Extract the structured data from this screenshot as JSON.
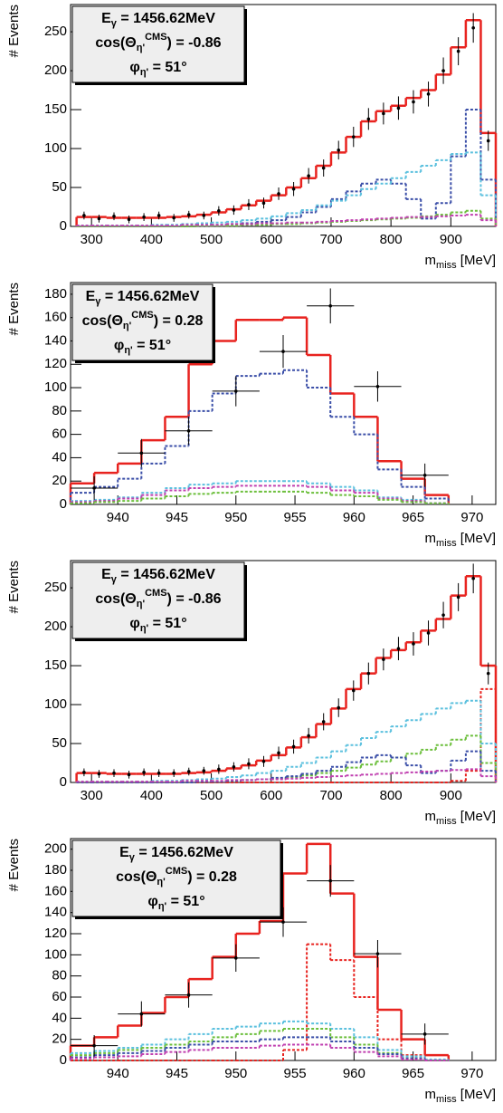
{
  "chart_data": [
    {
      "type": "histogram",
      "annotation": [
        {
          "text": "E",
          "sub": "γ",
          "tail": " = 1456.62MeV"
        },
        {
          "text": "cos(Θ",
          "sub": "η'",
          "sup": "CMS",
          "tail": ") = -0.86"
        },
        {
          "text": "φ",
          "sub": "η'",
          "tail": " = 51°"
        }
      ],
      "ylabel": "# Events",
      "xlabel": {
        "text": "m",
        "sub": "miss",
        "tail": " [MeV]"
      },
      "xlim": [
        265,
        975
      ],
      "ylim": [
        0,
        285
      ],
      "xticks": [
        300,
        400,
        500,
        600,
        700,
        800,
        900
      ],
      "yticks": [
        0,
        50,
        100,
        150,
        200,
        250
      ],
      "bins": [
        275,
        300,
        325,
        350,
        375,
        400,
        425,
        450,
        475,
        500,
        525,
        550,
        575,
        600,
        625,
        650,
        675,
        700,
        725,
        750,
        775,
        800,
        825,
        850,
        875,
        900,
        925,
        950,
        975
      ],
      "series": [
        {
          "color": "#e8231f",
          "style": "solid",
          "values": [
            12,
            12,
            11,
            11,
            11,
            11,
            12,
            13,
            15,
            18,
            22,
            27,
            33,
            40,
            50,
            62,
            78,
            95,
            115,
            135,
            148,
            155,
            165,
            175,
            195,
            230,
            265,
            120
          ]
        },
        {
          "color": "#3b4fa8",
          "style": "dashed",
          "values": [
            0,
            0,
            0,
            0,
            0,
            0,
            0,
            0,
            1,
            2,
            3,
            4,
            6,
            8,
            12,
            18,
            25,
            35,
            45,
            55,
            60,
            55,
            35,
            10,
            30,
            90,
            150,
            60
          ]
        },
        {
          "color": "#5bc0de",
          "style": "dashed",
          "values": [
            1,
            1,
            1,
            1,
            1,
            2,
            2,
            3,
            4,
            5,
            6,
            8,
            10,
            13,
            17,
            21,
            27,
            33,
            40,
            48,
            55,
            62,
            70,
            78,
            85,
            93,
            95,
            40
          ]
        },
        {
          "color": "#6cbf3c",
          "style": "dashed",
          "values": [
            0,
            0,
            0,
            0,
            0,
            0,
            0,
            0,
            1,
            1,
            1,
            2,
            2,
            3,
            3,
            4,
            5,
            6,
            7,
            8,
            9,
            10,
            11,
            13,
            15,
            18,
            20,
            10
          ]
        },
        {
          "color": "#c040b0",
          "style": "dashed",
          "values": [
            1,
            1,
            1,
            1,
            1,
            1,
            1,
            2,
            2,
            2,
            3,
            3,
            4,
            4,
            5,
            5,
            6,
            7,
            8,
            9,
            10,
            11,
            12,
            12,
            13,
            14,
            15,
            8
          ]
        }
      ],
      "data": {
        "x": [
          287.5,
          312.5,
          337.5,
          362.5,
          387.5,
          412.5,
          437.5,
          462.5,
          487.5,
          512.5,
          537.5,
          562.5,
          587.5,
          612.5,
          637.5,
          662.5,
          687.5,
          712.5,
          737.5,
          762.5,
          787.5,
          812.5,
          837.5,
          862.5,
          887.5,
          912.5,
          937.5,
          962.5
        ],
        "values": [
          14,
          10,
          13,
          9,
          12,
          14,
          11,
          15,
          14,
          20,
          21,
          28,
          30,
          42,
          48,
          65,
          75,
          98,
          115,
          138,
          145,
          152,
          160,
          170,
          200,
          225,
          255,
          110
        ],
        "errors": [
          5,
          5,
          5,
          5,
          5,
          5,
          5,
          5,
          5,
          6,
          6,
          7,
          7,
          8,
          9,
          10,
          11,
          12,
          13,
          14,
          14,
          15,
          15,
          16,
          17,
          18,
          19,
          13
        ]
      }
    },
    {
      "type": "histogram",
      "annotation": [
        {
          "text": "E",
          "sub": "γ",
          "tail": " = 1456.62MeV"
        },
        {
          "text": "cos(Θ",
          "sub": "η'",
          "sup": "CMS",
          "tail": ") = 0.28"
        },
        {
          "text": "φ",
          "sub": "η'",
          "tail": " = 51°"
        }
      ],
      "ylabel": "# Events",
      "xlabel": {
        "text": "m",
        "sub": "miss",
        "tail": " [MeV]"
      },
      "xlim": [
        936,
        972
      ],
      "ylim": [
        0,
        190
      ],
      "xticks": [
        940,
        945,
        950,
        955,
        960,
        965,
        970
      ],
      "yticks": [
        0,
        20,
        40,
        60,
        80,
        100,
        120,
        140,
        160,
        180
      ],
      "bins": [
        936,
        938,
        940,
        942,
        944,
        946,
        948,
        950,
        952,
        954,
        956,
        958,
        960,
        962,
        964,
        966,
        968
      ],
      "series": [
        {
          "color": "#e8231f",
          "style": "solid",
          "values": [
            18,
            27,
            35,
            55,
            75,
            120,
            140,
            158,
            158,
            160,
            128,
            95,
            75,
            37,
            22,
            8
          ]
        },
        {
          "color": "#3b4fa8",
          "style": "dashed",
          "values": [
            10,
            15,
            22,
            35,
            50,
            80,
            95,
            110,
            112,
            115,
            100,
            75,
            60,
            30,
            15,
            5
          ]
        },
        {
          "color": "#5bc0de",
          "style": "dashed",
          "values": [
            3,
            4,
            6,
            10,
            14,
            17,
            18,
            20,
            20,
            20,
            18,
            15,
            12,
            6,
            4,
            1
          ]
        },
        {
          "color": "#c040b0",
          "style": "dashed",
          "values": [
            2,
            3,
            5,
            8,
            12,
            14,
            15,
            16,
            16,
            16,
            15,
            12,
            10,
            5,
            3,
            1
          ]
        },
        {
          "color": "#6cbf3c",
          "style": "dashed",
          "values": [
            1,
            2,
            3,
            5,
            7,
            9,
            10,
            11,
            11,
            11,
            10,
            8,
            7,
            4,
            2,
            1
          ]
        }
      ],
      "data": {
        "x": [
          938,
          942,
          946,
          950,
          954,
          958,
          962,
          966
        ],
        "values": [
          14,
          44,
          63,
          97,
          131,
          170,
          101,
          25
        ],
        "errors": [
          10,
          12,
          12,
          13,
          14,
          15,
          13,
          10
        ],
        "xerr": 2
      }
    },
    {
      "type": "histogram",
      "annotation": [
        {
          "text": "E",
          "sub": "γ",
          "tail": " = 1456.62MeV"
        },
        {
          "text": "cos(Θ",
          "sub": "η'",
          "sup": "CMS",
          "tail": ") = -0.86"
        },
        {
          "text": "φ",
          "sub": "η'",
          "tail": " = 51°"
        }
      ],
      "ylabel": "# Events",
      "xlabel": {
        "text": "m",
        "sub": "miss",
        "tail": " [MeV]"
      },
      "xlim": [
        265,
        975
      ],
      "ylim": [
        0,
        285
      ],
      "xticks": [
        300,
        400,
        500,
        600,
        700,
        800,
        900
      ],
      "yticks": [
        0,
        50,
        100,
        150,
        200,
        250
      ],
      "bins": [
        275,
        300,
        325,
        350,
        375,
        400,
        425,
        450,
        475,
        500,
        525,
        550,
        575,
        600,
        625,
        650,
        675,
        700,
        725,
        750,
        775,
        800,
        825,
        850,
        875,
        900,
        925,
        950,
        975
      ],
      "series": [
        {
          "color": "#e8231f",
          "style": "solid",
          "values": [
            12,
            12,
            11,
            11,
            11,
            11,
            11,
            12,
            13,
            15,
            18,
            22,
            28,
            35,
            45,
            58,
            75,
            95,
            120,
            140,
            160,
            170,
            180,
            195,
            210,
            240,
            265,
            150
          ]
        },
        {
          "color": "#e8231f",
          "style": "dashed",
          "values": [
            0,
            0,
            0,
            0,
            0,
            0,
            0,
            0,
            0,
            0,
            0,
            0,
            0,
            0,
            0,
            0,
            0,
            0,
            0,
            0,
            0,
            0,
            0,
            0,
            0,
            2,
            15,
            120
          ]
        },
        {
          "color": "#5bc0de",
          "style": "dashed",
          "values": [
            1,
            1,
            1,
            1,
            1,
            2,
            2,
            3,
            4,
            5,
            7,
            9,
            12,
            15,
            20,
            25,
            32,
            40,
            48,
            57,
            65,
            72,
            80,
            88,
            95,
            102,
            105,
            50
          ]
        },
        {
          "color": "#6cbf3c",
          "style": "dashed",
          "values": [
            0,
            0,
            0,
            0,
            0,
            0,
            0,
            1,
            1,
            1,
            2,
            3,
            4,
            5,
            7,
            9,
            12,
            15,
            19,
            23,
            27,
            32,
            37,
            42,
            48,
            55,
            60,
            25
          ]
        },
        {
          "color": "#3b4fa8",
          "style": "dashed",
          "values": [
            0,
            0,
            0,
            0,
            0,
            0,
            0,
            0,
            1,
            1,
            2,
            3,
            4,
            6,
            8,
            11,
            15,
            20,
            26,
            32,
            35,
            32,
            22,
            12,
            15,
            28,
            40,
            15
          ]
        },
        {
          "color": "#c040b0",
          "style": "dashed",
          "values": [
            1,
            1,
            1,
            1,
            1,
            1,
            1,
            2,
            2,
            2,
            3,
            3,
            4,
            4,
            5,
            6,
            7,
            8,
            9,
            10,
            11,
            12,
            13,
            14,
            15,
            16,
            17,
            8
          ]
        }
      ],
      "data": {
        "x": [
          287.5,
          312.5,
          337.5,
          362.5,
          387.5,
          412.5,
          437.5,
          462.5,
          487.5,
          512.5,
          537.5,
          562.5,
          587.5,
          612.5,
          637.5,
          662.5,
          687.5,
          712.5,
          737.5,
          762.5,
          787.5,
          812.5,
          837.5,
          862.5,
          887.5,
          912.5,
          937.5,
          962.5
        ],
        "values": [
          13,
          11,
          12,
          10,
          13,
          12,
          12,
          14,
          15,
          17,
          20,
          24,
          27,
          38,
          46,
          60,
          78,
          96,
          118,
          140,
          158,
          172,
          178,
          192,
          215,
          238,
          262,
          140
        ],
        "errors": [
          5,
          5,
          5,
          5,
          5,
          5,
          5,
          5,
          5,
          6,
          6,
          7,
          7,
          8,
          9,
          10,
          11,
          12,
          13,
          14,
          14,
          15,
          15,
          16,
          17,
          18,
          19,
          14
        ]
      }
    },
    {
      "type": "histogram",
      "annotation": [
        {
          "text": "E",
          "sub": "γ",
          "tail": " = 1456.62MeV"
        },
        {
          "text": "cos(Θ",
          "sub": "η'",
          "sup": "CMS",
          "tail": ") = 0.28"
        },
        {
          "text": "φ",
          "sub": "η'",
          "tail": " = 51°"
        }
      ],
      "ylabel": "# Events",
      "xlabel": {
        "text": "m",
        "sub": "miss",
        "tail": " [MeV]"
      },
      "xlim": [
        936,
        972
      ],
      "ylim": [
        0,
        210
      ],
      "xticks": [
        940,
        945,
        950,
        955,
        960,
        965,
        970
      ],
      "yticks": [
        0,
        20,
        40,
        60,
        80,
        100,
        120,
        140,
        160,
        180,
        200
      ],
      "bins": [
        936,
        938,
        940,
        942,
        944,
        946,
        948,
        950,
        952,
        954,
        956,
        958,
        960,
        962,
        964,
        966,
        968
      ],
      "series": [
        {
          "color": "#e8231f",
          "style": "solid",
          "values": [
            14,
            22,
            33,
            45,
            60,
            77,
            98,
            120,
            132,
            177,
            205,
            158,
            98,
            48,
            20,
            5
          ]
        },
        {
          "color": "#e8231f",
          "style": "dashed",
          "values": [
            0,
            0,
            0,
            0,
            0,
            0,
            0,
            0,
            0,
            10,
            110,
            95,
            60,
            20,
            5,
            0
          ]
        },
        {
          "color": "#5bc0de",
          "style": "dashed",
          "values": [
            7,
            9,
            12,
            15,
            20,
            25,
            30,
            32,
            35,
            37,
            35,
            30,
            22,
            10,
            4,
            1
          ]
        },
        {
          "color": "#6cbf3c",
          "style": "dashed",
          "values": [
            5,
            7,
            10,
            12,
            15,
            18,
            22,
            25,
            28,
            30,
            30,
            22,
            15,
            7,
            2,
            0
          ]
        },
        {
          "color": "#3b4fa8",
          "style": "dashed",
          "values": [
            3,
            5,
            7,
            9,
            12,
            15,
            18,
            18,
            20,
            22,
            22,
            18,
            12,
            6,
            2,
            0
          ]
        },
        {
          "color": "#c040b0",
          "style": "dashed",
          "values": [
            2,
            3,
            4,
            6,
            8,
            10,
            12,
            12,
            14,
            15,
            15,
            12,
            8,
            4,
            1,
            0
          ]
        }
      ],
      "data": {
        "x": [
          938,
          942,
          946,
          950,
          954,
          958,
          962,
          966
        ],
        "values": [
          14,
          44,
          62,
          97,
          131,
          170,
          101,
          25
        ],
        "errors": [
          10,
          12,
          12,
          13,
          14,
          15,
          13,
          10
        ],
        "xerr": 2
      }
    }
  ]
}
